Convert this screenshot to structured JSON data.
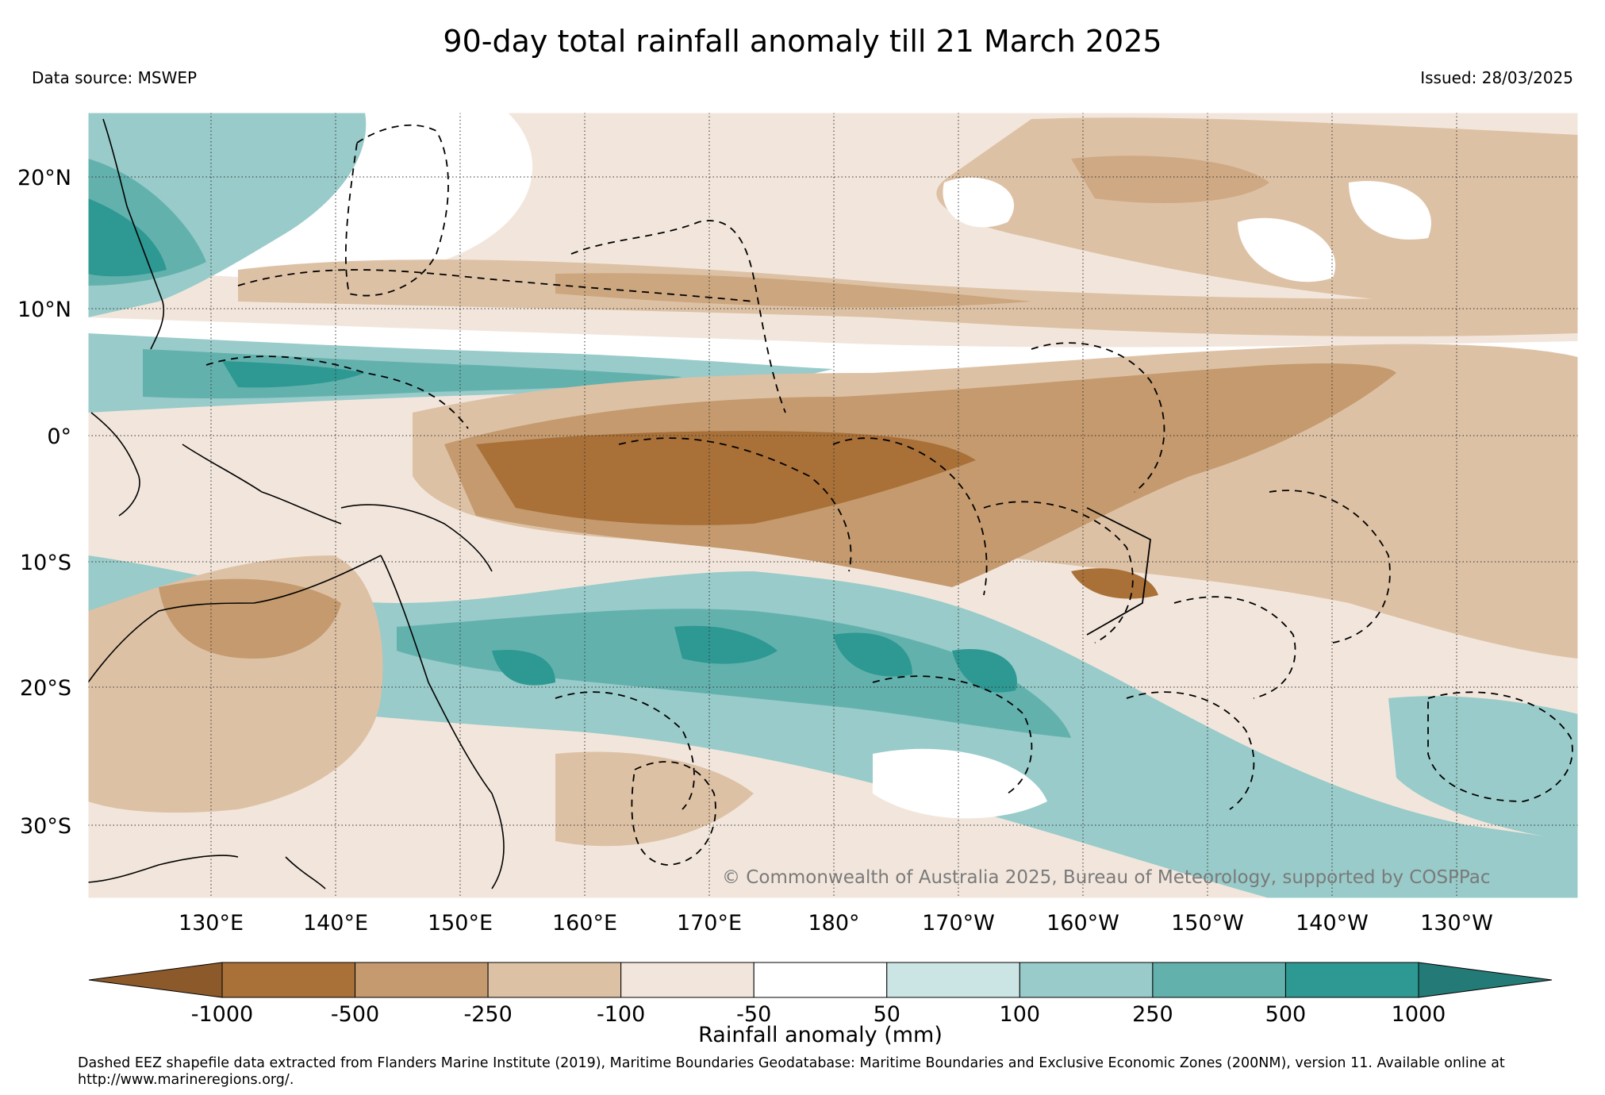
{
  "title": "90-day total rainfall anomaly till 21 March 2025",
  "data_source": "Data source: MSWEP",
  "issued": "Issued: 28/03/2025",
  "copyright": "© Commonwealth of Australia 2025, Bureau of Meteorology, supported by COSPPac",
  "footnote": "Dashed EEZ shapefile data extracted from Flanders Marine Institute (2019), Maritime Boundaries Geodatabase: Maritime Boundaries and Exclusive Economic Zones (200NM), version 11. Available online at http://www.marineregions.org/.",
  "map": {
    "lon_range": [
      120,
      240
    ],
    "lat_range": [
      -35,
      25
    ],
    "lat_ticks": [
      {
        "value": 20,
        "label": "20°N"
      },
      {
        "value": 10,
        "label": "10°N"
      },
      {
        "value": 0,
        "label": "0°"
      },
      {
        "value": -10,
        "label": "10°S"
      },
      {
        "value": -20,
        "label": "20°S"
      },
      {
        "value": -30,
        "label": "30°S"
      }
    ],
    "lon_ticks": [
      {
        "value": 130,
        "label": "130°E"
      },
      {
        "value": 140,
        "label": "140°E"
      },
      {
        "value": 150,
        "label": "150°E"
      },
      {
        "value": 160,
        "label": "160°E"
      },
      {
        "value": 170,
        "label": "170°E"
      },
      {
        "value": 180,
        "label": "180°"
      },
      {
        "value": 190,
        "label": "170°W"
      },
      {
        "value": 200,
        "label": "160°W"
      },
      {
        "value": 210,
        "label": "150°W"
      },
      {
        "value": 220,
        "label": "140°W"
      },
      {
        "value": 230,
        "label": "130°W"
      }
    ]
  },
  "colorbar": {
    "label": "Rainfall anomaly (mm)",
    "ticks": [
      "-1000",
      "-500",
      "-250",
      "-100",
      "-50",
      "50",
      "100",
      "250",
      "500",
      "1000"
    ],
    "under_color": "#8c5a2a",
    "over_color": "#247a76",
    "colors": [
      "#a97038",
      "#c49a6e",
      "#ddc1a5",
      "#f2e6dc",
      "#ffffff",
      "#cbe5e4",
      "#98cbc9",
      "#63b1ad",
      "#2e9893"
    ]
  }
}
